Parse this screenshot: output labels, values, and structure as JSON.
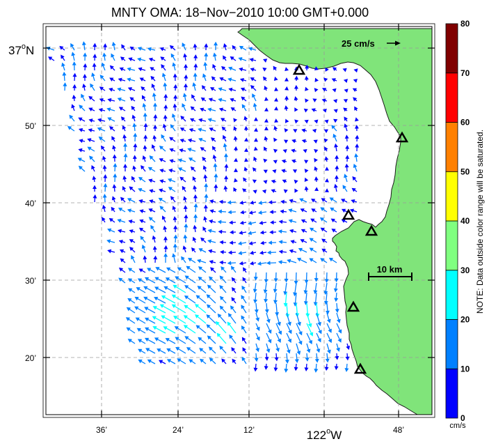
{
  "title": "MNTY OMA: 18−Nov−2010 10:00 GMT+0.000",
  "scale_vector_label": "25 cm/s",
  "distance_scale_label": "10 km",
  "lat_labels": {
    "top": "37",
    "top_sup": "o",
    "top_hemi": "N",
    "ticks": [
      "50’",
      "40’",
      "30’",
      "20’"
    ]
  },
  "lon_labels": {
    "ticks": [
      "36’",
      "24’",
      "12’",
      "48’"
    ],
    "main": "122",
    "main_sup": "o",
    "main_hemi": "W"
  },
  "colorbar": {
    "ticks": [
      "0",
      "10",
      "20",
      "30",
      "40",
      "50",
      "60",
      "70",
      "80"
    ],
    "unit": "cm/s",
    "note": "NOTE: Data outside color range will be saturated.",
    "colors": [
      "#0000ff",
      "#0080ff",
      "#00ffff",
      "#80ff80",
      "#ffff00",
      "#ff8000",
      "#ff0000",
      "#800000"
    ]
  },
  "colors": {
    "land": "#80e47a",
    "coast": "#1a1a1a",
    "grid": "#9a9a9a",
    "station": "#000000"
  }
}
